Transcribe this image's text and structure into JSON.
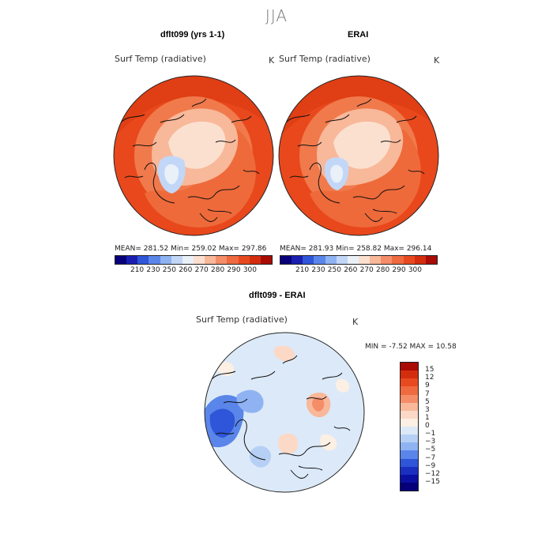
{
  "season": "JJA",
  "panels": {
    "model": {
      "title": "dflt099 (yrs 1-1)",
      "variable": "Surf Temp (radiative)",
      "unit": "K",
      "stats": "MEAN= 281.52   Min= 259.02   Max= 297.86"
    },
    "obs": {
      "title": "ERAI",
      "variable": "Surf Temp (radiative)",
      "unit": "K",
      "stats": "MEAN= 281.93   Min= 258.82   Max= 296.14"
    },
    "diff": {
      "title": "dflt099 - ERAI",
      "variable": "Surf Temp (radiative)",
      "unit": "K",
      "stats": "MIN =   -7.52  MAX =   10.58"
    }
  },
  "colorbar_abs": {
    "labels": [
      "210",
      "230",
      "250",
      "260",
      "270",
      "280",
      "290",
      "300"
    ],
    "colors": [
      "#08007a",
      "#1a1fb0",
      "#2f55d8",
      "#5a86ea",
      "#8fb3f2",
      "#c2d7f7",
      "#eaf0f8",
      "#fbe0cf",
      "#f8b89a",
      "#f48d68",
      "#ef6a3f",
      "#e84a1f",
      "#d42d0e",
      "#a80c05"
    ]
  },
  "colorbar_diff": {
    "labels": [
      "15",
      "12",
      "9",
      "7",
      "5",
      "3",
      "1",
      "0",
      "−1",
      "−3",
      "−5",
      "−7",
      "−9",
      "−12",
      "−15"
    ],
    "colors": [
      "#a80c05",
      "#d42d0e",
      "#e84a1f",
      "#ef6a3f",
      "#f48d68",
      "#f8b89a",
      "#fbd9c6",
      "#fcefe4",
      "#dce9f8",
      "#b6cff4",
      "#8fb3f2",
      "#5a86ea",
      "#2f55d8",
      "#1a2fc0",
      "#0b10a0",
      "#05007a"
    ]
  },
  "map_colors": {
    "warm_outer": "#e8481c",
    "warm_mid": "#f07a4c",
    "warm_inner": "#f8b89a",
    "ice": "#fbe0cf",
    "cold": "#c2d7f7",
    "diff_bg": "#dce9f8",
    "diff_cold": "#5a86ea",
    "diff_warm": "#f8b89a"
  }
}
